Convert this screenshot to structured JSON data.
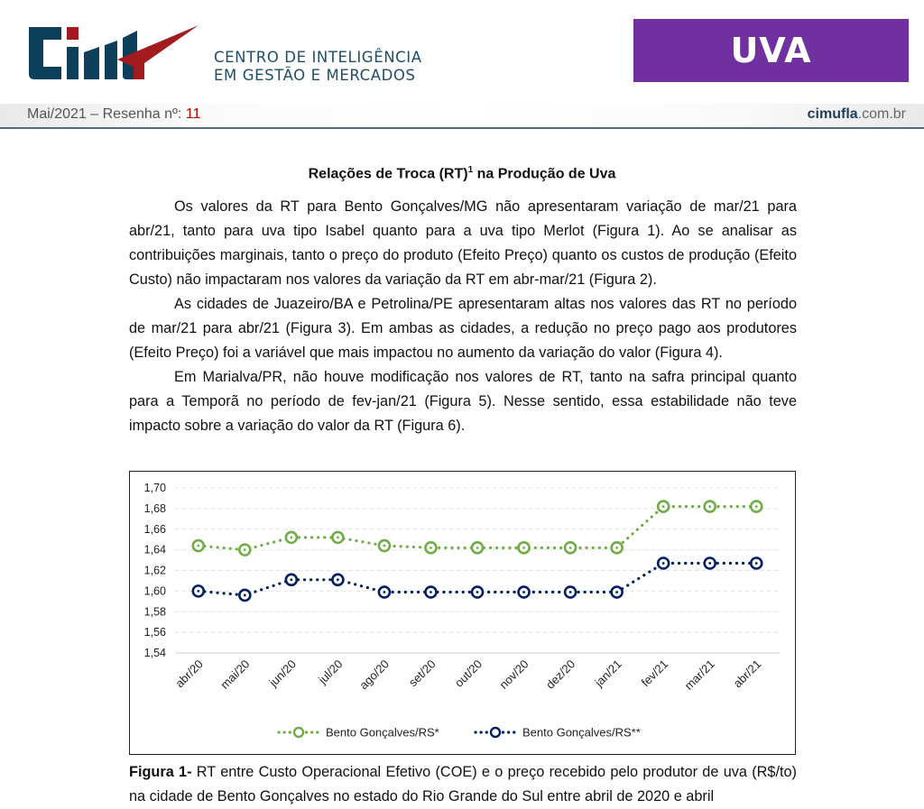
{
  "header": {
    "logo_line1": "CENTRO DE INTELIGÊNCIA",
    "logo_line2": "EM GESTÃO E MERCADOS",
    "badge": "UVA",
    "issue_label": "Mai/2021 – Resenha nº: ",
    "issue_number": "11",
    "site_bold": "cimufla",
    "site_rest": ".com.br"
  },
  "article": {
    "title_pre": "Relações de Troca (RT)",
    "title_sup": "1",
    "title_post": " na Produção de Uva",
    "paragraphs": [
      "Os valores da RT para Bento Gonçalves/MG não apresentaram variação de mar/21 para abr/21, tanto para uva tipo Isabel quanto para a uva tipo Merlot (Figura 1). Ao se analisar as contribuições marginais, tanto o preço do produto (Efeito Preço) quanto os custos de produção (Efeito Custo) não impactaram nos valores da variação da RT em abr-mar/21 (Figura 2).",
      "As cidades de Juazeiro/BA e Petrolina/PE apresentaram altas nos valores das RT no período de mar/21 para abr/21 (Figura 3). Em ambas as cidades, a redução no preço pago aos produtores (Efeito Preço) foi a variável que mais impactou no aumento da variação do valor (Figura 4).",
      "Em Marialva/PR, não houve modificação nos valores de RT, tanto na safra principal quanto para a Temporã no período de fev-jan/21 (Figura 5). Nesse sentido, essa estabilidade não teve impacto sobre a variação do valor da RT (Figura 6)."
    ],
    "caption_bold": "Figura 1-",
    "caption_text": " RT entre Custo Operacional Efetivo (COE) e o preço recebido pelo produtor de uva (R$/to) na cidade de Bento Gonçalves no estado do Rio Grande do Sul entre abril de 2020 e abril"
  },
  "chart_data": {
    "type": "line",
    "title": "",
    "xlabel": "",
    "ylabel": "",
    "categories": [
      "abr/20",
      "mai/20",
      "jun/20",
      "jul/20",
      "ago/20",
      "set/20",
      "out/20",
      "nov/20",
      "dez/20",
      "jan/21",
      "fev/21",
      "mar/21",
      "abr/21"
    ],
    "ylim": [
      1.54,
      1.7
    ],
    "yticks": [
      "1,54",
      "1,56",
      "1,58",
      "1,60",
      "1,62",
      "1,64",
      "1,66",
      "1,68",
      "1,70"
    ],
    "grid": true,
    "legend_position": "bottom",
    "series": [
      {
        "name": "Bento Gonçalves/RS*",
        "color": "#70ad47",
        "values": [
          1.644,
          1.64,
          1.652,
          1.652,
          1.644,
          1.642,
          1.642,
          1.642,
          1.642,
          1.642,
          1.682,
          1.682,
          1.682
        ]
      },
      {
        "name": "Bento Gonçalves/RS**",
        "color": "#002060",
        "values": [
          1.6,
          1.596,
          1.611,
          1.611,
          1.599,
          1.599,
          1.599,
          1.599,
          1.599,
          1.599,
          1.627,
          1.627,
          1.627
        ]
      }
    ]
  }
}
